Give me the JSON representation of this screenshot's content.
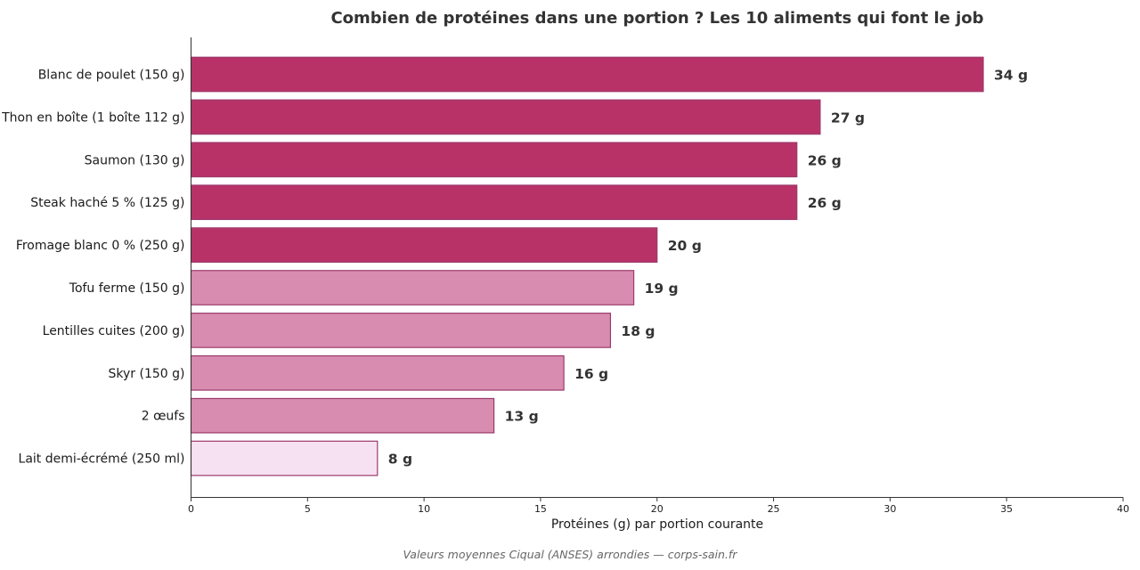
{
  "chart_data": {
    "type": "bar",
    "orientation": "horizontal",
    "title": "Combien de protéines dans une portion ? Les 10 aliments qui font le job",
    "xlabel": "Protéines (g) par portion courante",
    "ylabel": "",
    "xlim": [
      0,
      40
    ],
    "xticks": [
      0,
      5,
      10,
      15,
      20,
      25,
      30,
      35,
      40
    ],
    "grid": false,
    "categories": [
      "Blanc de poulet (150 g)",
      "Thon en boîte (1 boîte 112 g)",
      "Saumon (130 g)",
      "Steak haché 5 % (125 g)",
      "Fromage blanc 0 % (250 g)",
      "Tofu ferme (150 g)",
      "Lentilles cuites (200 g)",
      "Skyr (150 g)",
      "2 œufs",
      "Lait demi-écrémé (250 ml)"
    ],
    "values": [
      34,
      27,
      26,
      26,
      20,
      19,
      18,
      16,
      13,
      8
    ],
    "value_labels": [
      "34 g",
      "27 g",
      "26 g",
      "26 g",
      "20 g",
      "19 g",
      "18 g",
      "16 g",
      "13 g",
      "8 g"
    ],
    "bar_colors": [
      "#b83268",
      "#b83268",
      "#b83268",
      "#b83268",
      "#b83268",
      "#d88cb0",
      "#d88cb0",
      "#d88cb0",
      "#d88cb0",
      "#f5e1f1"
    ],
    "bar_edge_color": "#9c3a6b",
    "source_note": "Valeurs moyennes Ciqual (ANSES) arrondies — corps-sain.fr"
  }
}
